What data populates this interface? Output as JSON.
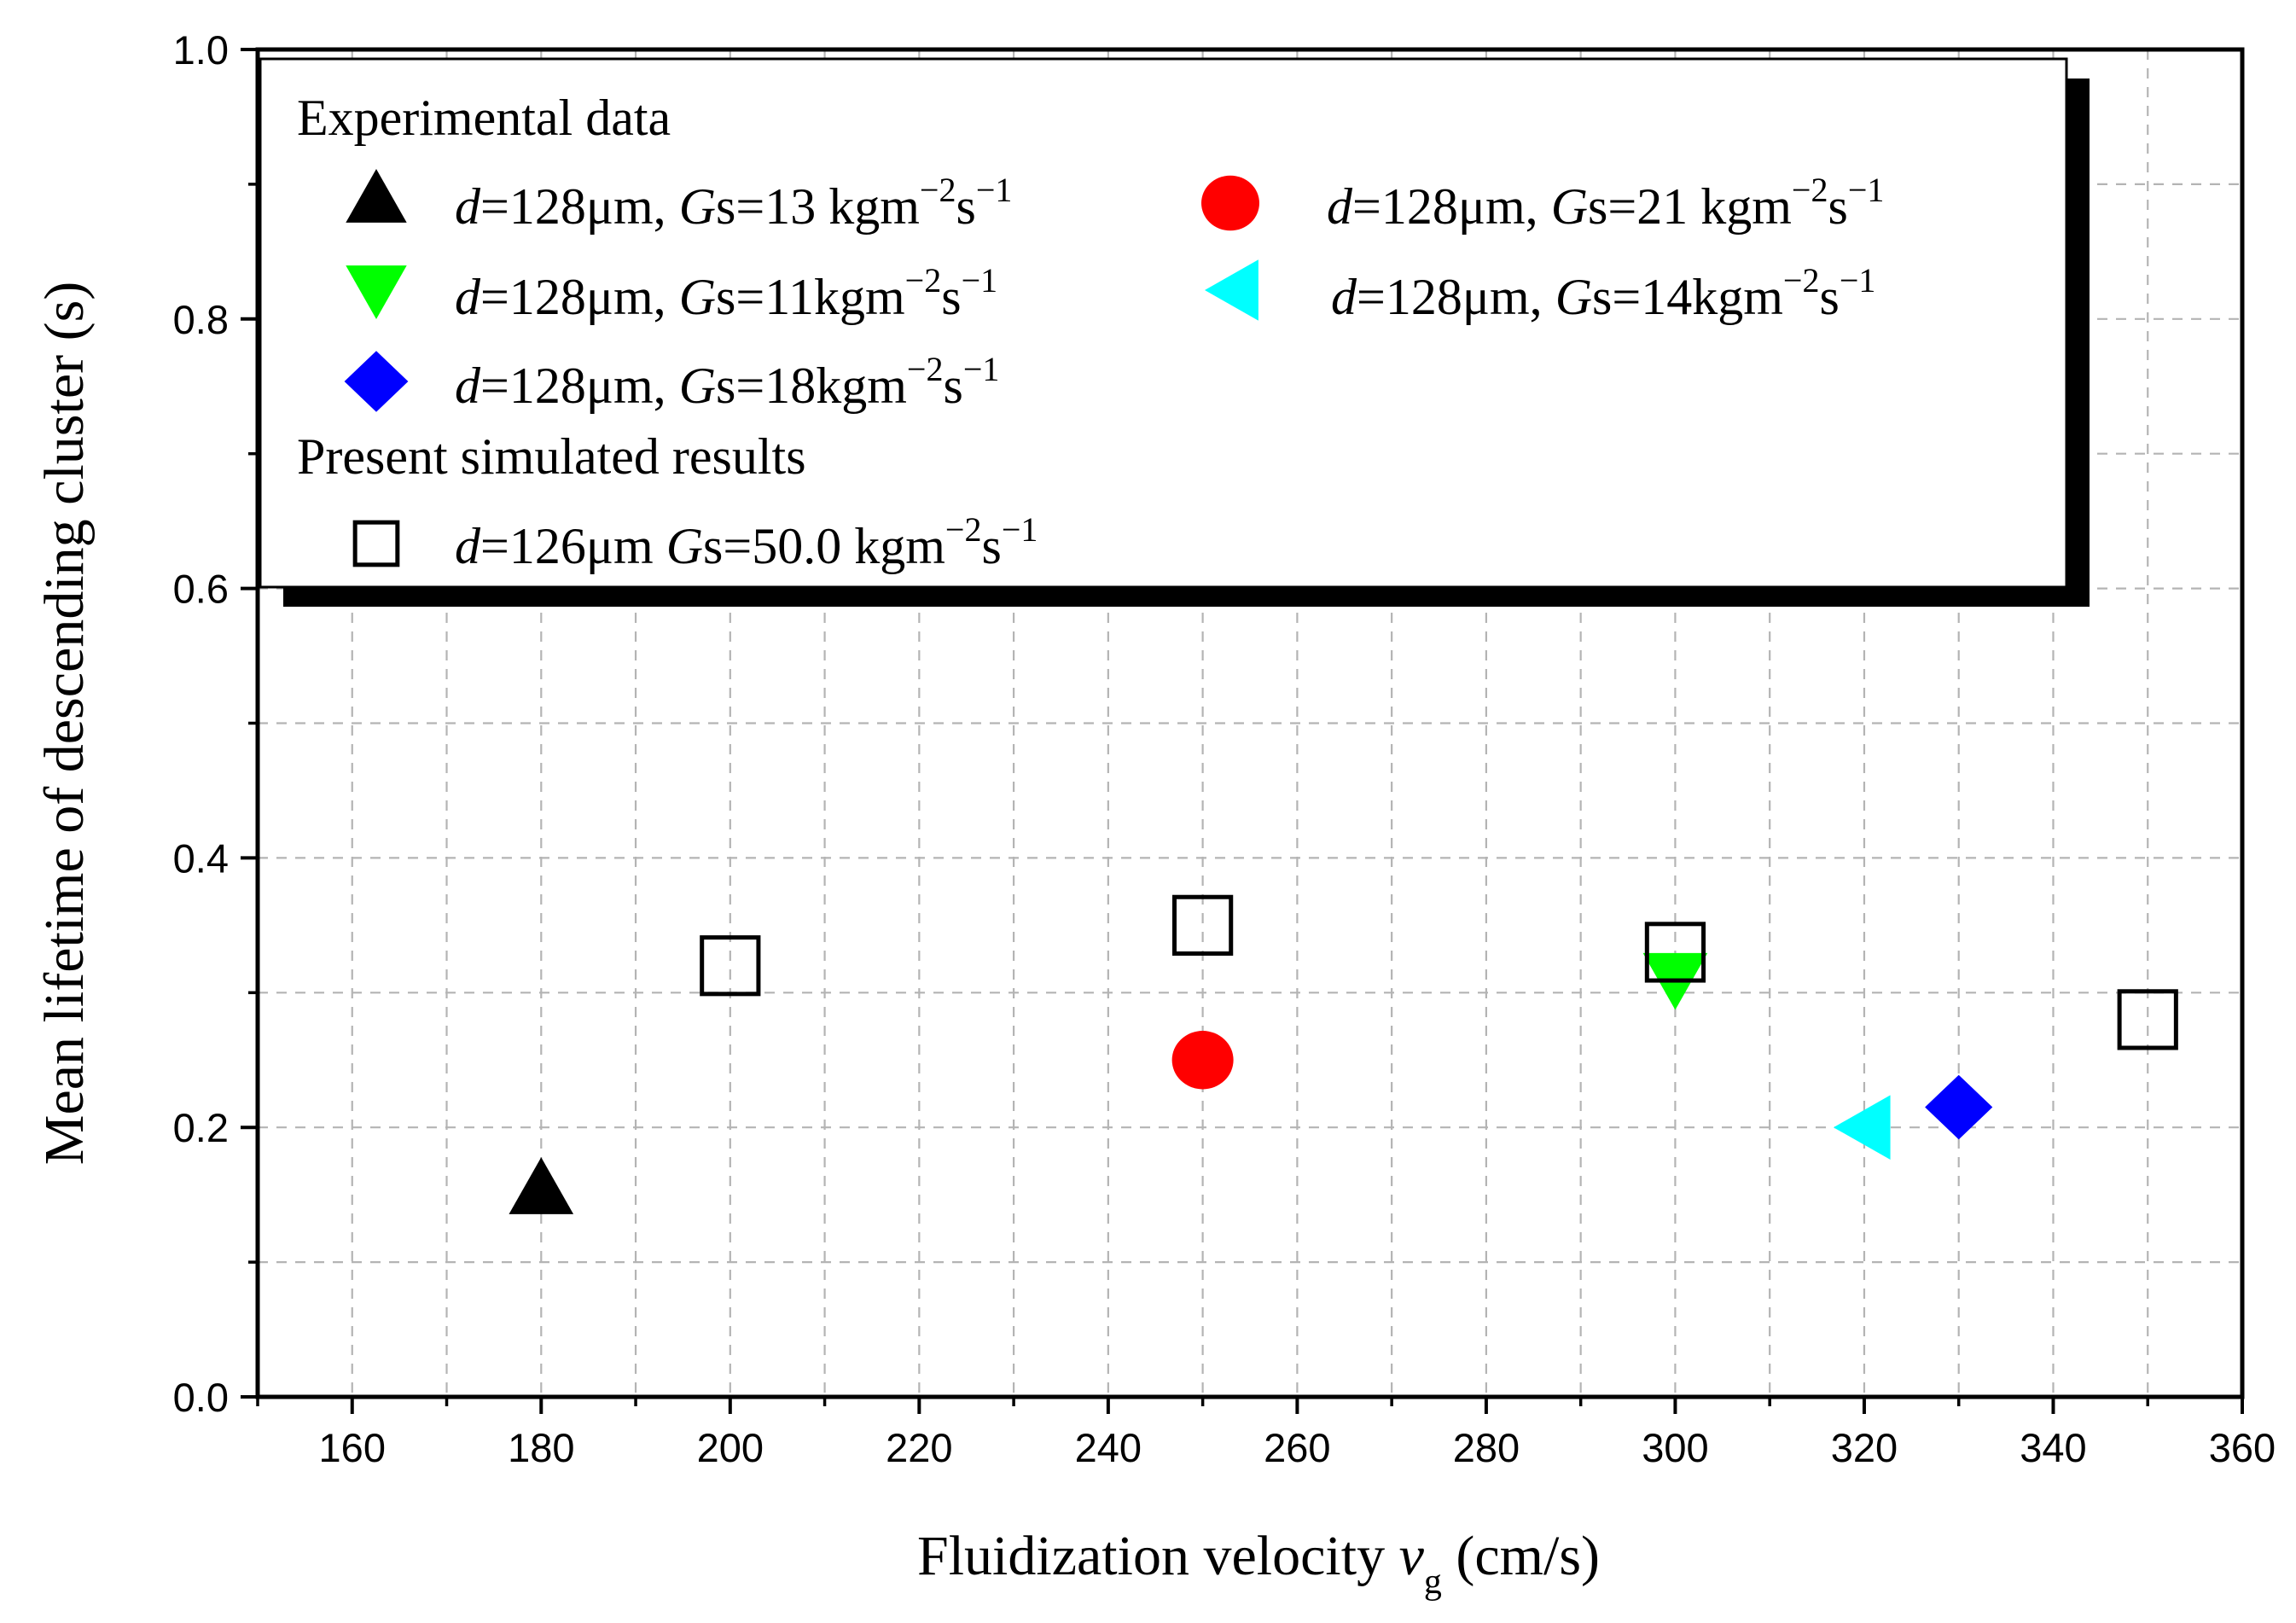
{
  "chart_data": {
    "type": "scatter",
    "title": "",
    "xlabel": "Fluidization velocity ",
    "xlabel_var": "v",
    "xlabel_sub": "g",
    "xlabel_unit": " (cm/s)",
    "ylabel": "Mean lifetime of descending cluster (s)",
    "xlim": [
      150,
      360
    ],
    "ylim": [
      0.0,
      1.0
    ],
    "xticks": [
      160,
      180,
      200,
      220,
      240,
      260,
      280,
      300,
      320,
      340,
      360
    ],
    "yticks": [
      0.0,
      0.2,
      0.4,
      0.6,
      0.8,
      1.0
    ],
    "xtick_labels": [
      "160",
      "180",
      "200",
      "220",
      "240",
      "260",
      "280",
      "300",
      "320",
      "340",
      "360"
    ],
    "ytick_labels": [
      "0.0",
      "0.2",
      "0.4",
      "0.6",
      "0.8",
      "1.0"
    ],
    "grid": true,
    "legend": {
      "placement": "top-left",
      "header_experimental": "Experimental data",
      "header_simulated": "Present simulated results"
    },
    "series": [
      {
        "name": "d=128μm, Gs=13 kgm-2s-1",
        "label_d": "d",
        "label_mid": "=128μm, ",
        "label_g": "G",
        "label_rest": "s=13 kgm",
        "exp1": "−2",
        "s": "s",
        "exp2": "−1",
        "marker": "triangle-up",
        "color": "#000000",
        "points": [
          {
            "x": 180,
            "y": 0.155
          }
        ]
      },
      {
        "name": "d=128μm, Gs=21 kgm-2s-1",
        "label_d": "d",
        "label_mid": "=128μm, ",
        "label_g": "G",
        "label_rest": "s=21 kgm",
        "exp1": "−2",
        "s": "s",
        "exp2": "−1",
        "marker": "circle",
        "color": "#ff0000",
        "points": [
          {
            "x": 250,
            "y": 0.25
          }
        ]
      },
      {
        "name": "d=128μm, Gs=11kgm-2s-1",
        "label_d": "d",
        "label_mid": "=128μm, ",
        "label_g": "G",
        "label_rest": "s=11kgm",
        "exp1": "−2",
        "s": "s",
        "exp2": "−1",
        "marker": "triangle-down",
        "color": "#00ff00",
        "points": [
          {
            "x": 300,
            "y": 0.31
          }
        ]
      },
      {
        "name": "d=128μm, Gs=14kgm-2s-1",
        "label_d": "d",
        "label_mid": "=128μm, ",
        "label_g": "G",
        "label_rest": "s=14kgm",
        "exp1": "−2",
        "s": "s",
        "exp2": "−1",
        "marker": "triangle-left",
        "color": "#00ffff",
        "points": [
          {
            "x": 320,
            "y": 0.2
          }
        ]
      },
      {
        "name": "d=128μm, Gs=18kgm-2s-1",
        "label_d": "d",
        "label_mid": "=128μm, ",
        "label_g": "G",
        "label_rest": "s=18kgm",
        "exp1": "−2",
        "s": "s",
        "exp2": "−1",
        "marker": "diamond",
        "color": "#0000ff",
        "points": [
          {
            "x": 330,
            "y": 0.215
          }
        ]
      },
      {
        "name": "d=126μm Gs=50.0 kgm-2s-1",
        "label_d": "d",
        "label_mid": "=126μm  ",
        "label_g": "G",
        "label_rest": "s=50.0 kgm",
        "exp1": "−2",
        "s": "s",
        "exp2": "−1",
        "marker": "square-open",
        "color": "#000000",
        "points": [
          {
            "x": 200,
            "y": 0.32
          },
          {
            "x": 250,
            "y": 0.35
          },
          {
            "x": 300,
            "y": 0.33
          },
          {
            "x": 350,
            "y": 0.28
          }
        ]
      }
    ]
  }
}
